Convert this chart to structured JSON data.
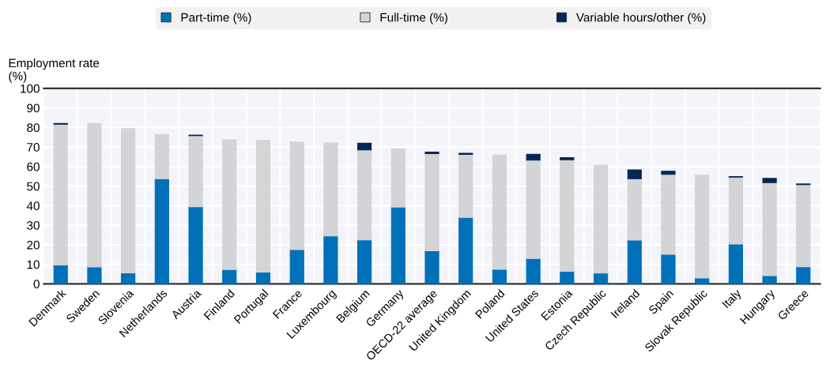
{
  "chart_data": {
    "type": "bar",
    "stacked": true,
    "ylabel": "Employment rate (%)",
    "categories": [
      "Denmark",
      "Sweden",
      "Slovenia",
      "Netherlands",
      "Austria",
      "Finland",
      "Portugal",
      "France",
      "Luxembourg",
      "Belgium",
      "Germany",
      "OECD-22 average",
      "United Kingdom",
      "Poland",
      "United States",
      "Estonia",
      "Czech Republic",
      "Ireland",
      "Spain",
      "Slovak Republic",
      "Italy",
      "Hungary",
      "Greece"
    ],
    "series": [
      {
        "name": "Part-time (%)",
        "color": "#0070b8",
        "values": [
          9.7,
          8.7,
          5.6,
          53.8,
          39.5,
          7.3,
          6.0,
          17.5,
          24.5,
          22.5,
          39.3,
          16.9,
          34.0,
          7.4,
          13.0,
          6.4,
          5.5,
          22.4,
          15.1,
          3.0,
          20.4,
          4.2,
          8.8
        ]
      },
      {
        "name": "Full-time (%)",
        "color": "#d3d4d6",
        "values": [
          72.0,
          73.3,
          73.8,
          22.6,
          36.3,
          66.4,
          67.4,
          55.0,
          47.6,
          46.1,
          29.7,
          49.7,
          32.2,
          58.5,
          50.3,
          57.1,
          55.1,
          31.4,
          40.9,
          52.6,
          34.2,
          47.6,
          42.0
        ]
      },
      {
        "name": "Variable hours/other (%)",
        "color": "#002855",
        "values": [
          0.3,
          null,
          null,
          null,
          0.3,
          null,
          null,
          null,
          null,
          3.3,
          null,
          0.8,
          0.6,
          null,
          3.0,
          1.1,
          null,
          4.5,
          1.6,
          null,
          0.3,
          2.2,
          0.3
        ]
      }
    ],
    "ylim": [
      0,
      100
    ],
    "yticks": [
      0,
      10,
      20,
      30,
      40,
      50,
      60,
      70,
      80,
      90,
      100
    ],
    "grid": true,
    "legend": "top"
  }
}
